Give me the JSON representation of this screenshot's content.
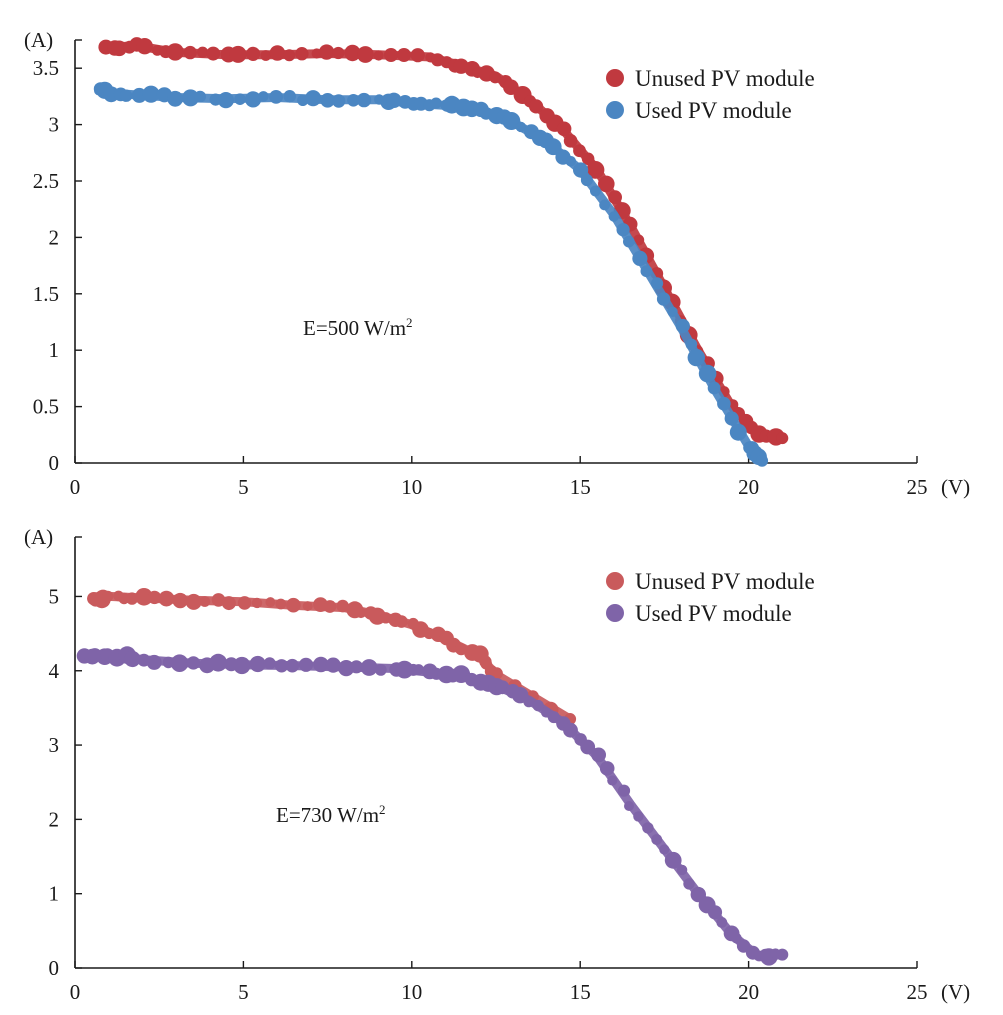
{
  "chart_data": [
    {
      "type": "scatter",
      "title": "",
      "xlabel": "(V)",
      "ylabel": "(A)",
      "xlim": [
        0,
        25
      ],
      "ylim": [
        0,
        3.75
      ],
      "x_ticks": [
        "0",
        "5",
        "10",
        "15",
        "20",
        "25"
      ],
      "y_ticks": [
        "0",
        "0.5",
        "1",
        "1.5",
        "2",
        "2.5",
        "3",
        "3.5"
      ],
      "grid": false,
      "legend_position": "top-right",
      "annotation": {
        "text": "E=500 W/m",
        "superscript": "2"
      },
      "series": [
        {
          "name": "Unused PV module",
          "color": "#c0393f",
          "points": [
            [
              0.9,
              3.68
            ],
            [
              1.8,
              3.7
            ],
            [
              3,
              3.64
            ],
            [
              4.5,
              3.62
            ],
            [
              6,
              3.62
            ],
            [
              7.5,
              3.63
            ],
            [
              9,
              3.62
            ],
            [
              10.5,
              3.6
            ],
            [
              11.5,
              3.52
            ],
            [
              12.5,
              3.43
            ],
            [
              13.5,
              3.22
            ],
            [
              14.5,
              2.95
            ],
            [
              15.5,
              2.6
            ],
            [
              16.5,
              2.1
            ],
            [
              17.5,
              1.55
            ],
            [
              18.5,
              1.0
            ],
            [
              19.5,
              0.5
            ],
            [
              20.3,
              0.25
            ],
            [
              21,
              0.22
            ]
          ]
        },
        {
          "name": "Used PV module",
          "color": "#4b86c2",
          "points": [
            [
              0.7,
              3.3
            ],
            [
              1.5,
              3.27
            ],
            [
              3,
              3.24
            ],
            [
              4.5,
              3.23
            ],
            [
              6,
              3.24
            ],
            [
              7.5,
              3.22
            ],
            [
              9,
              3.22
            ],
            [
              10,
              3.19
            ],
            [
              11,
              3.17
            ],
            [
              12,
              3.14
            ],
            [
              13,
              3.02
            ],
            [
              14,
              2.85
            ],
            [
              15,
              2.6
            ],
            [
              16,
              2.2
            ],
            [
              17,
              1.7
            ],
            [
              18,
              1.2
            ],
            [
              19,
              0.65
            ],
            [
              20,
              0.15
            ],
            [
              20.4,
              0.02
            ]
          ]
        }
      ]
    },
    {
      "type": "scatter",
      "title": "",
      "xlabel": "(V)",
      "ylabel": "(A)",
      "xlim": [
        0,
        25
      ],
      "ylim": [
        0,
        5.8
      ],
      "x_ticks": [
        "0",
        "5",
        "10",
        "15",
        "20",
        "25"
      ],
      "y_ticks": [
        "0",
        "1",
        "2",
        "3",
        "4",
        "5"
      ],
      "grid": false,
      "legend_position": "top-right",
      "annotation": {
        "text": "E=730 W/m",
        "superscript": "2"
      },
      "series": [
        {
          "name": "Unused PV module",
          "color": "#c95a5c",
          "points": [
            [
              0.5,
              4.97
            ],
            [
              1,
              5.0
            ],
            [
              2,
              4.98
            ],
            [
              3.5,
              4.95
            ],
            [
              5,
              4.93
            ],
            [
              6.5,
              4.88
            ],
            [
              8,
              4.85
            ],
            [
              9,
              4.75
            ],
            [
              10,
              4.62
            ],
            [
              11,
              4.42
            ],
            [
              12,
              4.2
            ],
            [
              12.5,
              3.95
            ],
            [
              14.7,
              3.35
            ]
          ]
        },
        {
          "name": "Used PV module",
          "color": "#7f64a8",
          "points": [
            [
              0.3,
              4.18
            ],
            [
              1,
              4.22
            ],
            [
              2,
              4.15
            ],
            [
              3.5,
              4.1
            ],
            [
              5,
              4.08
            ],
            [
              6.5,
              4.07
            ],
            [
              8,
              4.05
            ],
            [
              9.5,
              4.03
            ],
            [
              10.5,
              3.98
            ],
            [
              11.5,
              3.93
            ],
            [
              12.5,
              3.8
            ],
            [
              13.5,
              3.6
            ],
            [
              14.5,
              3.3
            ],
            [
              15.5,
              2.85
            ],
            [
              16.5,
              2.2
            ],
            [
              17.5,
              1.6
            ],
            [
              18.5,
              1.0
            ],
            [
              19.5,
              0.45
            ],
            [
              20.3,
              0.15
            ],
            [
              21,
              0.18
            ]
          ]
        }
      ]
    }
  ]
}
